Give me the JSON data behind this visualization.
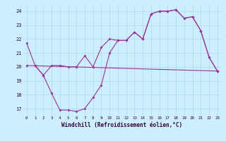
{
  "xlabel": "Windchill (Refroidissement éolien,°C)",
  "background_color": "#cceeff",
  "grid_color": "#aadddd",
  "line_color": "#993399",
  "xlim": [
    -0.5,
    23.5
  ],
  "ylim": [
    16.5,
    24.5
  ],
  "yticks": [
    17,
    18,
    19,
    20,
    21,
    22,
    23,
    24
  ],
  "xticks": [
    0,
    1,
    2,
    3,
    4,
    5,
    6,
    7,
    8,
    9,
    10,
    11,
    12,
    13,
    14,
    15,
    16,
    17,
    18,
    19,
    20,
    21,
    22,
    23
  ],
  "series1_x": [
    0,
    1,
    2,
    3,
    4,
    5,
    6,
    7,
    8,
    9,
    10,
    11,
    12,
    13,
    14,
    15,
    16,
    17,
    18,
    19,
    20,
    21,
    22,
    23
  ],
  "series1_y": [
    21.7,
    20.1,
    19.4,
    20.1,
    20.1,
    20.0,
    20.0,
    20.8,
    20.0,
    21.4,
    22.0,
    21.9,
    21.9,
    22.5,
    22.0,
    23.8,
    24.0,
    24.0,
    24.1,
    23.5,
    23.6,
    22.6,
    20.7,
    19.7
  ],
  "series2_x": [
    0,
    23
  ],
  "series2_y": [
    20.1,
    19.7
  ],
  "series3_x": [
    1,
    2,
    3,
    4,
    5,
    6,
    7,
    8,
    9,
    10,
    11,
    12,
    13,
    14,
    15,
    16,
    17,
    18,
    19,
    20,
    21,
    22,
    23
  ],
  "series3_y": [
    20.1,
    19.4,
    18.1,
    16.9,
    16.9,
    16.8,
    17.0,
    17.8,
    18.7,
    21.0,
    21.9,
    21.9,
    22.5,
    22.0,
    23.8,
    24.0,
    24.0,
    24.1,
    23.5,
    23.6,
    22.6,
    20.7,
    19.7
  ]
}
